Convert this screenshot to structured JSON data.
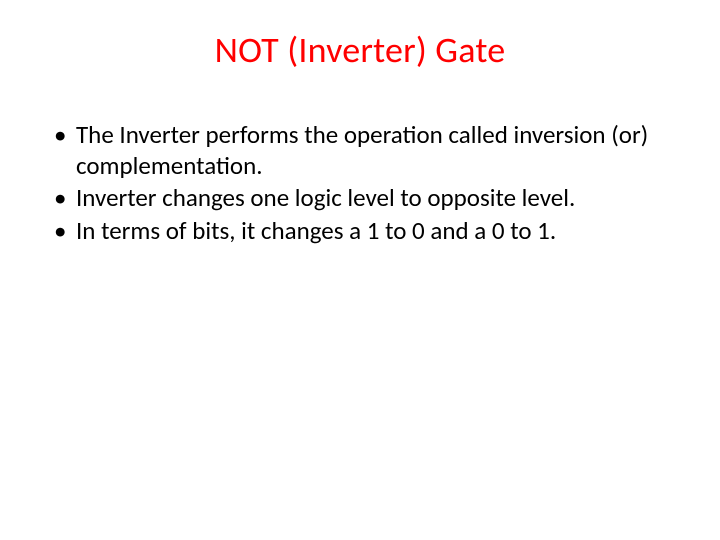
{
  "slide": {
    "title": "NOT (Inverter) Gate",
    "title_color": "#ff0000",
    "title_fontsize": 36,
    "body_color": "#000000",
    "body_fontsize": 25,
    "background_color": "#ffffff",
    "bullets": [
      "The Inverter performs the operation called inversion (or) complementation.",
      "Inverter  changes one logic level to opposite level.",
      "In terms of bits, it changes a 1 to 0 and a 0 to 1."
    ]
  }
}
